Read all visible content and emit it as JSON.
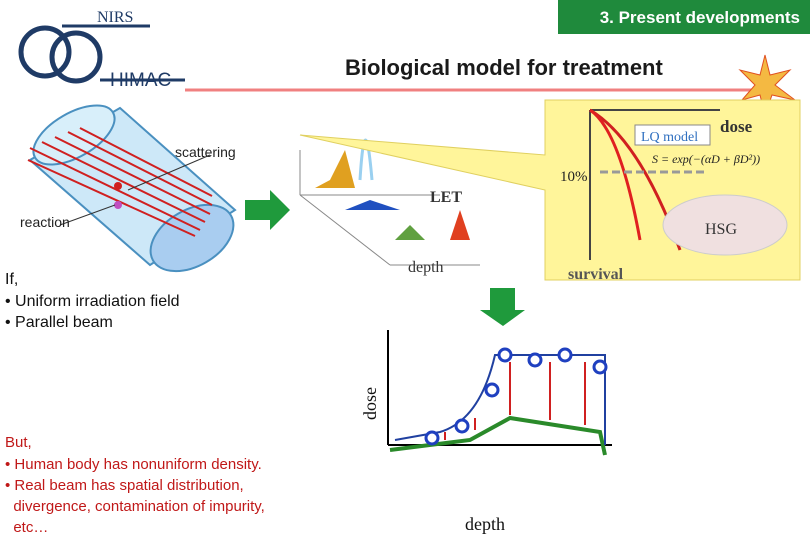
{
  "header": {
    "org": "NIRS",
    "facility": "HIMAC",
    "section": "3. Present developments",
    "title": "Biological model for treatment"
  },
  "diagram": {
    "scattering": "scattering",
    "reaction": "reaction",
    "lq_model": "LQ model",
    "dose": "dose",
    "formula": "S = exp(−(αD + βD²))",
    "percent": "10%",
    "let": "LET",
    "cell": "HSG",
    "depth": "depth",
    "survival": "survival"
  },
  "assumptions": {
    "intro": "If,",
    "items": [
      "• Uniform irradiation field",
      "• Parallel beam"
    ]
  },
  "caveats": {
    "intro": "But,",
    "items": [
      "• Human body has nonuniform density.",
      "• Real beam has spatial distribution,",
      "  divergence, contamination of impurity,",
      "  etc…"
    ]
  },
  "plot": {
    "y_label": "dose",
    "x_label": "depth"
  }
}
